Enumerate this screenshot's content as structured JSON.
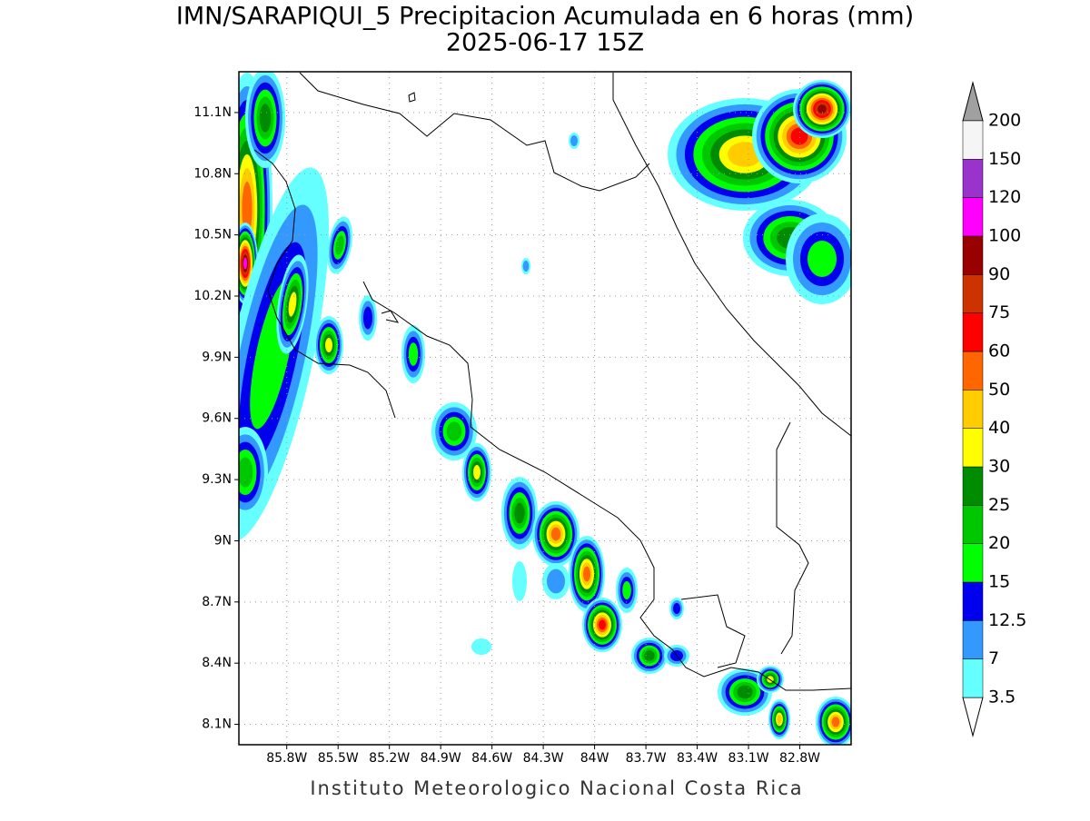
{
  "title": "IMN/SARAPIQUI_5 Precipitacion Acumulada en 6 horas (mm)",
  "subtitle": "2025-06-17 15Z",
  "footer": "Instituto Meteorologico Nacional Costa Rica",
  "map": {
    "xlim": [
      -86.08,
      -82.5
    ],
    "ylim": [
      8.0,
      11.3
    ],
    "xticks": [
      {
        "value": -85.8,
        "label": "85.8W"
      },
      {
        "value": -85.5,
        "label": "85.5W"
      },
      {
        "value": -85.2,
        "label": "85.2W"
      },
      {
        "value": -84.9,
        "label": "84.9W"
      },
      {
        "value": -84.6,
        "label": "84.6W"
      },
      {
        "value": -84.3,
        "label": "84.3W"
      },
      {
        "value": -84.0,
        "label": "84W"
      },
      {
        "value": -83.7,
        "label": "83.7W"
      },
      {
        "value": -83.4,
        "label": "83.4W"
      },
      {
        "value": -83.1,
        "label": "83.1W"
      },
      {
        "value": -82.8,
        "label": "82.8W"
      }
    ],
    "yticks": [
      {
        "value": 8.1,
        "label": "8.1N"
      },
      {
        "value": 8.4,
        "label": "8.4N"
      },
      {
        "value": 8.7,
        "label": "8.7N"
      },
      {
        "value": 9.0,
        "label": "9N"
      },
      {
        "value": 9.3,
        "label": "9.3N"
      },
      {
        "value": 9.6,
        "label": "9.6N"
      },
      {
        "value": 9.9,
        "label": "9.9N"
      },
      {
        "value": 10.2,
        "label": "10.2N"
      },
      {
        "value": 10.5,
        "label": "10.5N"
      },
      {
        "value": 10.8,
        "label": "10.8N"
      },
      {
        "value": 11.1,
        "label": "11.1N"
      }
    ],
    "grid": true
  },
  "colorbar": {
    "levels": [
      3.5,
      7,
      12.5,
      15,
      20,
      25,
      30,
      40,
      50,
      60,
      75,
      90,
      100,
      120,
      150,
      200
    ],
    "colors": [
      "#66ffff",
      "#3399ff",
      "#0000ee",
      "#00ff00",
      "#00c800",
      "#008c00",
      "#ffff00",
      "#ffcc00",
      "#ff6600",
      "#ff0000",
      "#cc3300",
      "#990000",
      "#ff00ff",
      "#9933cc",
      "#f5f5f5"
    ],
    "under_color": "#ffffff",
    "over_color": "#a0a0a0"
  }
}
